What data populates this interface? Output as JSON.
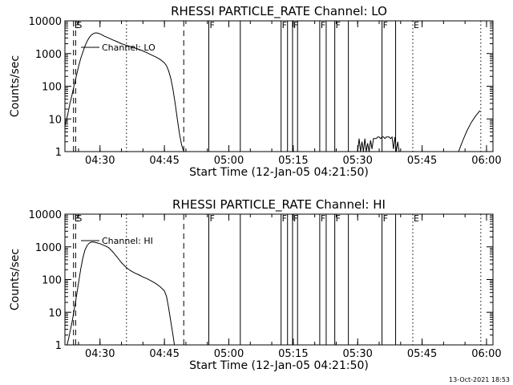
{
  "footer": {
    "timestamp": "13-Oct-2021 18:53"
  },
  "chart_data": [
    {
      "type": "line",
      "title": "RHESSI PARTICLE_RATE Channel: LO",
      "xlabel": "Start Time (12-Jan-05 04:21:50)",
      "ylabel": "Counts/sec",
      "yscale": "log",
      "xlim": [
        "04:21:50",
        "06:01:30"
      ],
      "ylim": [
        1,
        10000
      ],
      "x_ticks": [
        "04:30",
        "04:45",
        "05:00",
        "05:15",
        "05:30",
        "05:45",
        "06:00"
      ],
      "y_ticks": [
        "1",
        "10",
        "100",
        "1000",
        "10000"
      ],
      "grid": false,
      "legend": "Channel: LO",
      "series": [
        {
          "x": [
            "04:21:50",
            "04:22:30",
            "04:23:00",
            "04:23:30",
            "04:24:00",
            "04:24:30",
            "04:25:00",
            "04:25:30",
            "04:26:00",
            "04:26:30",
            "04:27:00",
            "04:27:30",
            "04:28:00",
            "04:28:30",
            "04:29:00",
            "04:29:30",
            "04:30:00",
            "04:30:30",
            "04:31:00",
            "04:32:00",
            "04:33:00",
            "04:34:00",
            "04:35:00",
            "04:36:00",
            "04:37:00",
            "04:38:00",
            "04:39:00",
            "04:40:00",
            "04:41:00",
            "04:42:00",
            "04:43:00",
            "04:44:00",
            "04:45:00",
            "04:45:30",
            "04:46:00",
            "04:46:30",
            "04:47:00",
            "04:47:30",
            "04:48:00",
            "04:48:30",
            "04:49:00",
            "04:49:30"
          ],
          "y": [
            6,
            14,
            30,
            55,
            110,
            210,
            400,
            700,
            1100,
            1700,
            2400,
            3100,
            3700,
            4100,
            4300,
            4200,
            4000,
            3700,
            3400,
            3000,
            2600,
            2300,
            2000,
            1800,
            1650,
            1500,
            1350,
            1200,
            1050,
            900,
            780,
            660,
            520,
            420,
            290,
            170,
            80,
            30,
            10,
            3.5,
            1.6,
            1
          ]
        },
        {
          "x": [
            "05:30:00",
            "05:30:20",
            "05:30:40",
            "05:31:00",
            "05:31:20",
            "05:31:40",
            "05:32:00",
            "05:32:20",
            "05:32:40",
            "05:33:00",
            "05:33:20",
            "05:33:40",
            "05:34:00",
            "05:34:20",
            "05:34:40",
            "05:35:00",
            "05:35:20",
            "05:35:40",
            "05:36:00",
            "05:36:20",
            "05:36:40",
            "05:37:00",
            "05:37:20",
            "05:37:40",
            "05:38:00",
            "05:38:20",
            "05:38:40",
            "05:39:00",
            "05:39:20",
            "05:39:40",
            "05:40:00"
          ],
          "y": [
            1,
            2.5,
            1,
            2,
            1,
            2.5,
            1,
            1.8,
            1,
            2.2,
            1.2,
            2.5,
            2.5,
            2.5,
            2.8,
            2.8,
            2.5,
            2.8,
            2.8,
            2.5,
            2.8,
            2.8,
            2.8,
            2.5,
            2.8,
            1.2,
            2.8,
            1,
            2,
            1,
            1
          ]
        },
        {
          "x": [
            "05:53:30",
            "05:54:00",
            "05:54:30",
            "05:55:00",
            "05:55:30",
            "05:56:00",
            "05:56:30",
            "05:57:00",
            "05:57:30",
            "05:58:00",
            "05:58:30"
          ],
          "y": [
            1,
            1.5,
            2.2,
            3.2,
            4.5,
            6,
            8,
            10,
            12.5,
            15,
            18
          ]
        }
      ],
      "flag_lines": [
        {
          "x": "04:23:50",
          "style": "dashed",
          "label": "E"
        },
        {
          "x": "04:24:20",
          "style": "dashed",
          "label": "S"
        },
        {
          "x": "04:49:30",
          "style": "dashed",
          "label": ""
        },
        {
          "x": "04:36:10",
          "style": "dotted",
          "label": ""
        },
        {
          "x": "04:55:20",
          "style": "solid",
          "label": "F"
        },
        {
          "x": "05:02:40",
          "style": "solid",
          "label": ""
        },
        {
          "x": "05:12:10",
          "style": "solid",
          "label": "F"
        },
        {
          "x": "05:13:40",
          "style": "solid",
          "label": ""
        },
        {
          "x": "05:14:50",
          "style": "solid",
          "label": "F"
        },
        {
          "x": "05:16:00",
          "style": "solid",
          "label": ""
        },
        {
          "x": "05:21:10",
          "style": "solid",
          "label": "F"
        },
        {
          "x": "05:22:40",
          "style": "solid",
          "label": ""
        },
        {
          "x": "05:24:40",
          "style": "solid",
          "label": "F"
        },
        {
          "x": "05:27:50",
          "style": "solid",
          "label": ""
        },
        {
          "x": "05:35:40",
          "style": "solid",
          "label": "F"
        },
        {
          "x": "05:38:50",
          "style": "solid",
          "label": ""
        },
        {
          "x": "05:42:50",
          "style": "dotted",
          "label": "E"
        },
        {
          "x": "05:58:40",
          "style": "dotted",
          "label": ""
        }
      ]
    },
    {
      "type": "line",
      "title": "RHESSI PARTICLE_RATE Channel: HI",
      "xlabel": "Start Time (12-Jan-05 04:21:50)",
      "ylabel": "Counts/sec",
      "yscale": "log",
      "xlim": [
        "04:21:50",
        "06:01:30"
      ],
      "ylim": [
        1,
        10000
      ],
      "x_ticks": [
        "04:30",
        "04:45",
        "05:00",
        "05:15",
        "05:30",
        "05:45",
        "06:00"
      ],
      "y_ticks": [
        "1",
        "10",
        "100",
        "1000",
        "10000"
      ],
      "grid": false,
      "legend": "Channel: HI",
      "series": [
        {
          "x": [
            "04:22:20",
            "04:22:40",
            "04:23:00",
            "04:23:30",
            "04:24:00",
            "04:24:30",
            "04:25:00",
            "04:25:30",
            "04:26:00",
            "04:26:30",
            "04:27:00",
            "04:27:30",
            "04:28:00",
            "04:28:30",
            "04:29:00",
            "04:29:30",
            "04:30:00",
            "04:31:00",
            "04:32:00",
            "04:33:00",
            "04:34:00",
            "04:35:00",
            "04:36:00",
            "04:37:00",
            "04:38:00",
            "04:39:00",
            "04:40:00",
            "04:41:00",
            "04:42:00",
            "04:43:00",
            "04:44:00",
            "04:45:00",
            "04:45:30",
            "04:46:00",
            "04:46:30",
            "04:47:00",
            "04:47:20"
          ],
          "y": [
            1,
            1.5,
            2.5,
            5,
            12,
            30,
            80,
            200,
            450,
            800,
            1100,
            1300,
            1400,
            1400,
            1350,
            1300,
            1250,
            1100,
            950,
            700,
            480,
            330,
            240,
            190,
            160,
            140,
            120,
            105,
            90,
            75,
            60,
            45,
            30,
            13,
            5,
            2,
            1
          ]
        }
      ],
      "flag_lines": [
        {
          "x": "04:23:50",
          "style": "dashed",
          "label": "E"
        },
        {
          "x": "04:24:20",
          "style": "dashed",
          "label": "S"
        },
        {
          "x": "04:49:30",
          "style": "dashed",
          "label": ""
        },
        {
          "x": "04:36:10",
          "style": "dotted",
          "label": ""
        },
        {
          "x": "04:55:20",
          "style": "solid",
          "label": "F"
        },
        {
          "x": "05:02:40",
          "style": "solid",
          "label": ""
        },
        {
          "x": "05:12:10",
          "style": "solid",
          "label": "F"
        },
        {
          "x": "05:13:40",
          "style": "solid",
          "label": ""
        },
        {
          "x": "05:14:50",
          "style": "solid",
          "label": "F"
        },
        {
          "x": "05:16:00",
          "style": "solid",
          "label": ""
        },
        {
          "x": "05:21:10",
          "style": "solid",
          "label": "F"
        },
        {
          "x": "05:22:40",
          "style": "solid",
          "label": ""
        },
        {
          "x": "05:24:40",
          "style": "solid",
          "label": "F"
        },
        {
          "x": "05:27:50",
          "style": "solid",
          "label": ""
        },
        {
          "x": "05:35:40",
          "style": "solid",
          "label": "F"
        },
        {
          "x": "05:38:50",
          "style": "solid",
          "label": ""
        },
        {
          "x": "05:42:50",
          "style": "dotted",
          "label": "E"
        },
        {
          "x": "05:58:40",
          "style": "dotted",
          "label": ""
        }
      ]
    }
  ]
}
